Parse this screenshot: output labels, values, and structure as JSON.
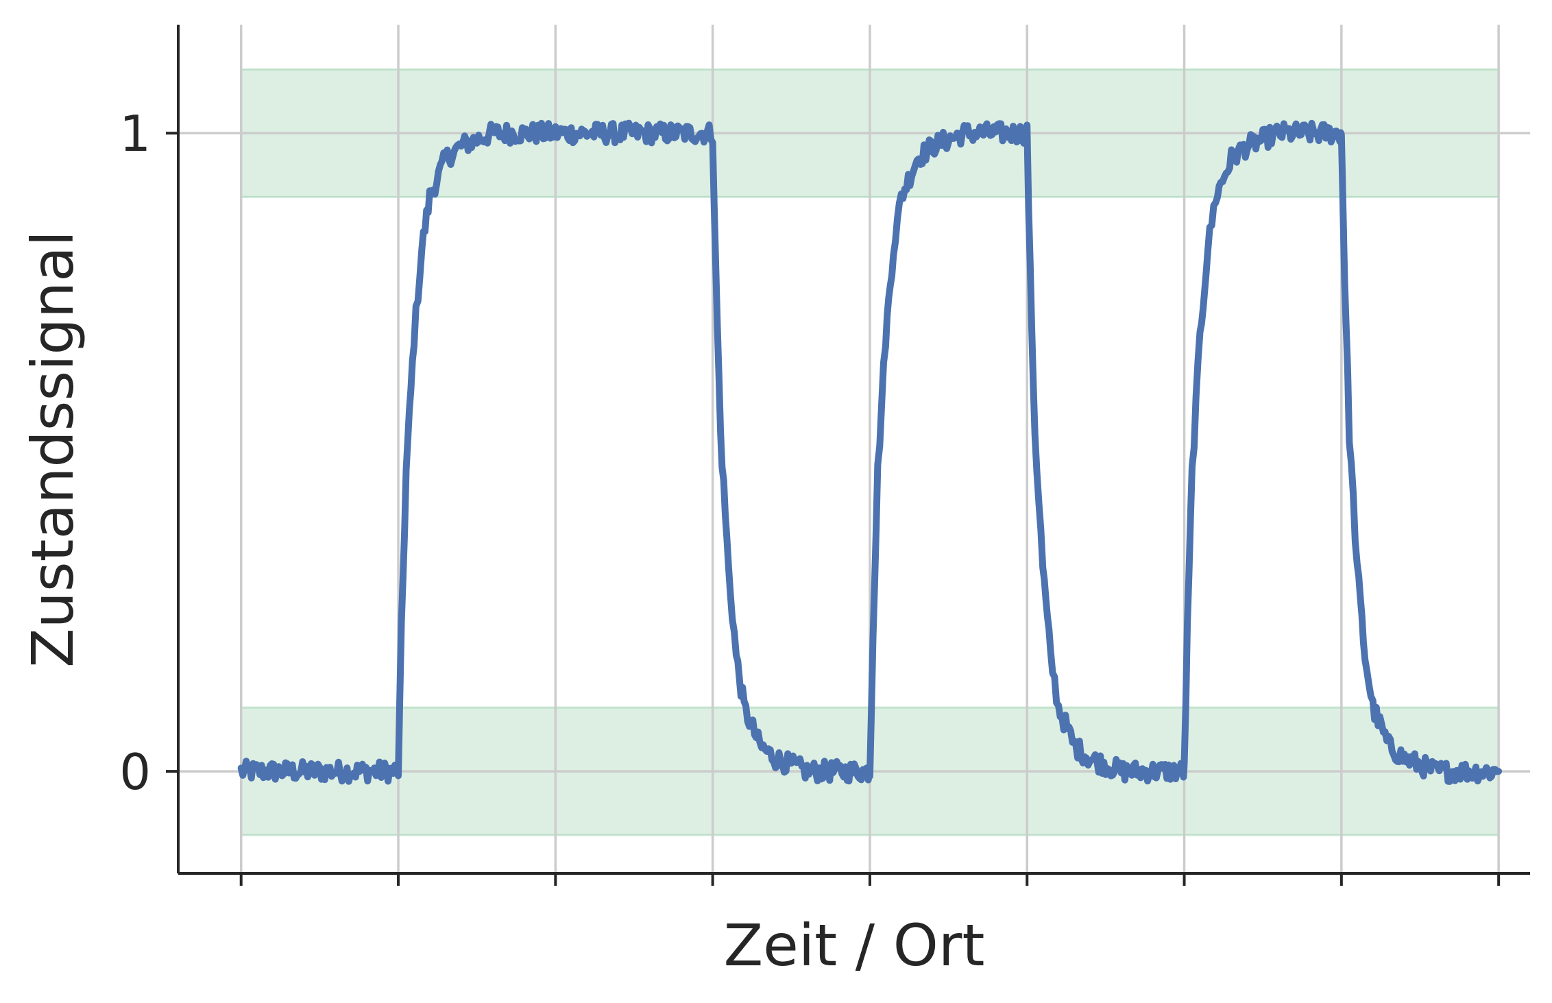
{
  "chart_data": {
    "type": "line",
    "title": "",
    "xlabel": "Zeit / Ort",
    "ylabel": "Zustandssignal",
    "xlim": [
      -0.4,
      8.2
    ],
    "ylim": [
      -0.16,
      1.17
    ],
    "x_ticks": [
      0,
      1,
      2,
      3,
      4,
      5,
      6,
      7,
      8
    ],
    "x_tick_labels": [
      "",
      "",
      "",
      "",
      "",
      "",
      "",
      "",
      ""
    ],
    "y_ticks": [
      0,
      1
    ],
    "y_tick_labels": [
      "0",
      "1"
    ],
    "grid": true,
    "bands": [
      {
        "x_range": [
          0,
          8
        ],
        "y_range": [
          -0.1,
          0.1
        ],
        "color": "#2e9e52",
        "label": ""
      },
      {
        "x_range": [
          0,
          8
        ],
        "y_range": [
          0.9,
          1.1
        ],
        "color": "#2e9e52",
        "label": ""
      }
    ],
    "series": [
      {
        "color": "#4c72b0",
        "x": [
          0,
          0.25,
          0.5,
          0.75,
          1.0,
          1.02,
          1.05,
          1.1,
          1.15,
          1.2,
          1.3,
          1.4,
          1.5,
          1.6,
          1.8,
          2.0,
          2.3,
          2.6,
          2.9,
          3.0,
          3.02,
          3.05,
          3.1,
          3.15,
          3.2,
          3.3,
          3.4,
          3.5,
          3.6,
          3.8,
          3.99,
          4.0,
          4.02,
          4.05,
          4.1,
          4.15,
          4.2,
          4.3,
          4.4,
          4.5,
          4.6,
          4.8,
          4.99,
          5.0,
          5.02,
          5.05,
          5.1,
          5.15,
          5.2,
          5.3,
          5.4,
          5.5,
          5.6,
          5.8,
          5.99,
          6.0,
          6.02,
          6.05,
          6.1,
          6.15,
          6.2,
          6.3,
          6.4,
          6.5,
          6.6,
          6.8,
          6.99,
          7.0,
          7.02,
          7.05,
          7.1,
          7.15,
          7.2,
          7.3,
          7.4,
          7.5,
          7.6,
          7.8,
          8.0
        ],
        "y": [
          0.0,
          0.0,
          0.0,
          0.0,
          0.0,
          0.22,
          0.47,
          0.68,
          0.82,
          0.9,
          0.96,
          0.98,
          0.99,
          1.0,
          1.0,
          1.0,
          1.0,
          1.0,
          1.0,
          1.0,
          0.78,
          0.53,
          0.32,
          0.18,
          0.1,
          0.04,
          0.02,
          0.01,
          0.0,
          0.0,
          0.0,
          0.0,
          0.22,
          0.47,
          0.68,
          0.82,
          0.9,
          0.96,
          0.98,
          0.99,
          1.0,
          1.0,
          1.0,
          1.0,
          0.78,
          0.53,
          0.32,
          0.18,
          0.1,
          0.04,
          0.02,
          0.01,
          0.0,
          0.0,
          0.0,
          0.0,
          0.22,
          0.47,
          0.68,
          0.82,
          0.9,
          0.96,
          0.98,
          0.99,
          1.0,
          1.0,
          1.0,
          1.0,
          0.78,
          0.53,
          0.32,
          0.18,
          0.1,
          0.04,
          0.02,
          0.01,
          0.0,
          0.0,
          0.0
        ]
      }
    ]
  }
}
